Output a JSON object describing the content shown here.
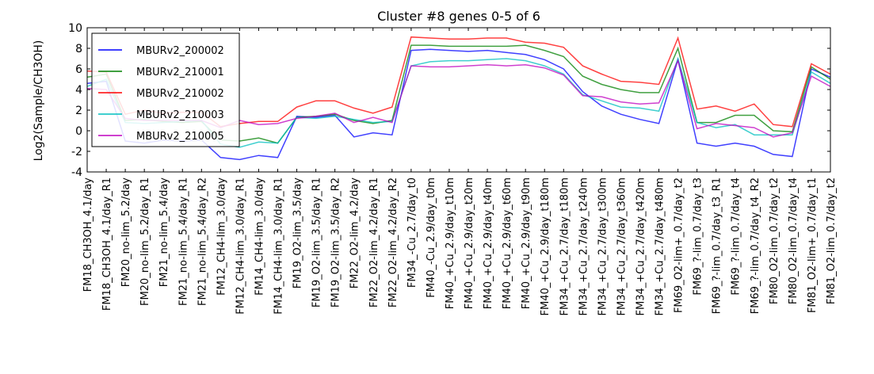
{
  "chart_data": {
    "type": "line",
    "title": "Cluster #8 genes 0-5 of 6",
    "xlabel": "",
    "ylabel": "Log2(Sample/CH3OH)",
    "ylim": [
      -4,
      10
    ],
    "yticks": [
      -4,
      -2,
      0,
      2,
      4,
      6,
      8,
      10
    ],
    "grid": false,
    "legend_position": "top-left",
    "categories": [
      "FM18_CH3OH_4.1/day",
      "FM18_CH3OH_4.1/day_R1",
      "FM20_no-lim_5.2/day",
      "FM20_no-lim_5.2/day_R1",
      "FM21_no-lim_5.4/day",
      "FM21_no-lim_5.4/day_R1",
      "FM21_no-lim_5.4/day_R2",
      "FM12_CH4-lim_3.0/day",
      "FM12_CH4-lim_3.0/day_R1",
      "FM14_CH4-lim_3.0/day",
      "FM14_CH4-lim_3.0/day_R1",
      "FM19_O2-lim_3.5/day",
      "FM19_O2-lim_3.5/day_R1",
      "FM19_O2-lim_3.5/day_R2",
      "FM22_O2-lim_4.2/day",
      "FM22_O2-lim_4.2/day_R1",
      "FM22_O2-lim_4.2/day_R2",
      "FM34_-Cu_2.7/day_t0",
      "FM40_-Cu_2.9/day_t0m",
      "FM40_+Cu_2.9/day_t10m",
      "FM40_+Cu_2.9/day_t20m",
      "FM40_+Cu_2.9/day_t40m",
      "FM40_+Cu_2.9/day_t60m",
      "FM40_+Cu_2.9/day_t90m",
      "FM40_+Cu_2.9/day_t180m",
      "FM34_+Cu_2.7/day_t180m",
      "FM34_+Cu_2.7/day_t240m",
      "FM34_+Cu_2.7/day_t300m",
      "FM34_+Cu_2.7/day_t360m",
      "FM34_+Cu_2.7/day_t420m",
      "FM34_+Cu_2.7/day_t480m",
      "FM69_O2-lim+_0.7/day_t2",
      "FM69_?-lim_0.7/day_t3",
      "FM69_?-lim_0.7/day_t3_R1",
      "FM69_?-lim_0.7/day_t4",
      "FM69_?-lim_0.7/day_t4_R2",
      "FM80_O2-lim_0.7/day_t2",
      "FM80_O2-lim_0.7/day_t4",
      "FM81_O2-lim+_0.7/day_t1",
      "FM81_O2-lim_0.7/day_t2"
    ],
    "series": [
      {
        "name": "MBURv2_200002",
        "color": "#0000ff",
        "values": [
          4.6,
          4.8,
          -1.0,
          -1.2,
          -0.9,
          -1.0,
          -0.9,
          -2.6,
          -2.8,
          -2.4,
          -2.6,
          1.4,
          1.3,
          1.5,
          -0.6,
          -0.2,
          -0.4,
          7.8,
          7.9,
          7.8,
          7.7,
          7.8,
          7.6,
          7.4,
          6.9,
          6.0,
          3.8,
          2.4,
          1.6,
          1.1,
          0.7,
          6.9,
          -1.2,
          -1.5,
          -1.2,
          -1.5,
          -2.3,
          -2.5,
          6.0,
          5.2
        ]
      },
      {
        "name": "MBURv2_210001",
        "color": "#008000",
        "values": [
          5.2,
          5.5,
          1.0,
          1.1,
          0.9,
          0.8,
          0.9,
          -0.9,
          -1.0,
          -0.7,
          -1.2,
          1.3,
          1.4,
          1.6,
          1.0,
          0.7,
          1.0,
          8.3,
          8.3,
          8.2,
          8.2,
          8.2,
          8.2,
          8.3,
          7.8,
          7.2,
          5.3,
          4.5,
          4.0,
          3.7,
          3.7,
          8.0,
          0.8,
          0.8,
          1.5,
          1.5,
          0.0,
          -0.1,
          6.2,
          5.0
        ]
      },
      {
        "name": "MBURv2_210002",
        "color": "#ff0000",
        "values": [
          5.8,
          5.7,
          1.6,
          2.0,
          1.7,
          1.8,
          1.8,
          0.4,
          0.7,
          0.9,
          0.9,
          2.3,
          2.9,
          2.9,
          2.2,
          1.7,
          2.3,
          9.1,
          9.0,
          8.9,
          8.9,
          9.0,
          9.0,
          8.6,
          8.5,
          8.1,
          6.3,
          5.5,
          4.8,
          4.7,
          4.5,
          9.0,
          2.1,
          2.4,
          1.9,
          2.6,
          0.6,
          0.4,
          6.5,
          5.5
        ]
      },
      {
        "name": "MBURv2_210003",
        "color": "#00bfbf",
        "values": [
          4.3,
          5.0,
          0.8,
          0.7,
          0.8,
          0.9,
          1.0,
          -1.3,
          -1.6,
          -1.1,
          -1.2,
          1.3,
          1.2,
          1.4,
          1.1,
          0.8,
          0.9,
          6.3,
          6.7,
          6.8,
          6.8,
          6.9,
          7.0,
          6.8,
          6.3,
          5.5,
          3.5,
          2.9,
          2.3,
          2.2,
          1.9,
          7.0,
          0.8,
          0.3,
          0.6,
          -0.4,
          -0.4,
          -0.4,
          5.7,
          4.6
        ]
      },
      {
        "name": "MBURv2_210005",
        "color": "#bf00bf",
        "values": [
          4.1,
          4.0,
          1.2,
          1.0,
          1.0,
          1.0,
          1.0,
          0.3,
          1.0,
          0.6,
          0.7,
          1.2,
          1.4,
          1.7,
          0.8,
          1.3,
          0.8,
          6.3,
          6.2,
          6.2,
          6.3,
          6.4,
          6.3,
          6.4,
          6.1,
          5.4,
          3.4,
          3.3,
          2.8,
          2.6,
          2.7,
          6.8,
          0.2,
          0.7,
          0.5,
          0.3,
          -0.6,
          -0.2,
          5.3,
          4.3
        ]
      }
    ]
  }
}
